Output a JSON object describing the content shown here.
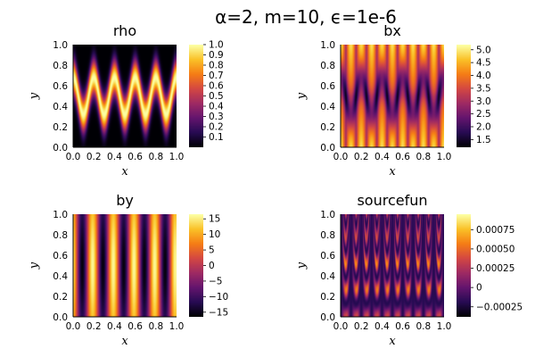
{
  "figure_title": "α=2, m=10, ϵ=1e-6",
  "chart_data": [
    {
      "type": "heatmap",
      "title": "rho",
      "xlabel": "x",
      "ylabel": "y",
      "xlim": [
        0.0,
        1.0
      ],
      "ylim": [
        0.0,
        1.0
      ],
      "xticks": [
        "0.0",
        "0.2",
        "0.4",
        "0.6",
        "0.8",
        "1.0"
      ],
      "yticks": [
        "0.0",
        "0.2",
        "0.4",
        "0.6",
        "0.8",
        "1.0"
      ],
      "colorbar": {
        "ticks": [
          "0.1",
          "0.2",
          "0.3",
          "0.4",
          "0.5",
          "0.6",
          "0.7",
          "0.8",
          "0.9",
          "1.0"
        ],
        "min": 0.0,
        "max": 1.0,
        "tick_values": [
          0.1,
          0.2,
          0.3,
          0.4,
          0.5,
          0.6,
          0.7,
          0.8,
          0.9,
          1.0
        ]
      },
      "colormap": "inferno",
      "field": "rho"
    },
    {
      "type": "heatmap",
      "title": "bx",
      "xlabel": "x",
      "ylabel": "y",
      "xlim": [
        0.0,
        1.0
      ],
      "ylim": [
        0.0,
        1.0
      ],
      "xticks": [
        "0.0",
        "0.2",
        "0.4",
        "0.6",
        "0.8",
        "1.0"
      ],
      "yticks": [
        "0.0",
        "0.2",
        "0.4",
        "0.6",
        "0.8",
        "1.0"
      ],
      "colorbar": {
        "ticks": [
          "1.5",
          "2.0",
          "2.5",
          "3.0",
          "3.5",
          "4.0",
          "4.5",
          "5.0"
        ],
        "min": 1.2,
        "max": 5.2,
        "tick_values": [
          1.5,
          2.0,
          2.5,
          3.0,
          3.5,
          4.0,
          4.5,
          5.0
        ]
      },
      "colormap": "inferno",
      "field": "bx"
    },
    {
      "type": "heatmap",
      "title": "by",
      "xlabel": "x",
      "ylabel": "y",
      "xlim": [
        0.0,
        1.0
      ],
      "ylim": [
        0.0,
        1.0
      ],
      "xticks": [
        "0.0",
        "0.2",
        "0.4",
        "0.6",
        "0.8",
        "1.0"
      ],
      "yticks": [
        "0.0",
        "0.2",
        "0.4",
        "0.6",
        "0.8",
        "1.0"
      ],
      "colorbar": {
        "ticks": [
          "15",
          "10",
          "5",
          "0",
          "−5",
          "−10",
          "−15"
        ],
        "min": -16.5,
        "max": 16.5,
        "tick_values": [
          15,
          10,
          5,
          0,
          -5,
          -10,
          -15
        ]
      },
      "colormap": "inferno",
      "field": "by"
    },
    {
      "type": "heatmap",
      "title": "sourcefun",
      "xlabel": "x",
      "ylabel": "y",
      "xlim": [
        0.0,
        1.0
      ],
      "ylim": [
        0.0,
        1.0
      ],
      "xticks": [
        "0.0",
        "0.2",
        "0.4",
        "0.6",
        "0.8",
        "1.0"
      ],
      "yticks": [
        "0.0",
        "0.2",
        "0.4",
        "0.6",
        "0.8",
        "1.0"
      ],
      "colorbar": {
        "ticks": [
          "0.00075",
          "0.00050",
          "0.00025",
          "0",
          "−0.00025"
        ],
        "min": -0.00038,
        "max": 0.00095,
        "tick_values": [
          0.00075,
          0.0005,
          0.00025,
          0,
          -0.00025
        ]
      },
      "colormap": "inferno",
      "field": "sourcefun"
    }
  ]
}
